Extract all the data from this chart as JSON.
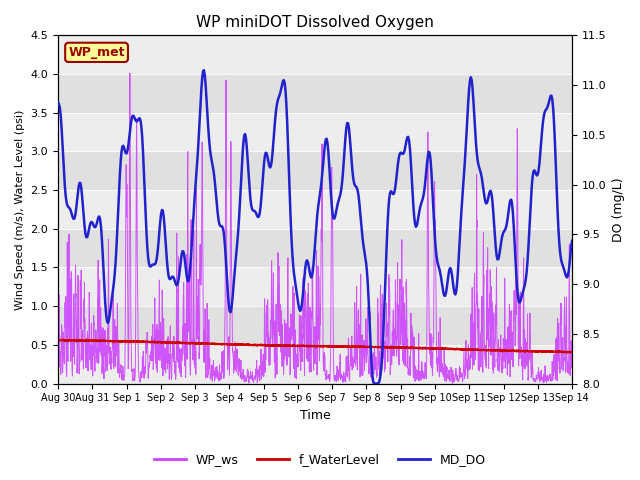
{
  "title": "WP miniDOT Dissolved Oxygen",
  "xlabel": "Time",
  "ylabel_left": "Wind Speed (m/s), Water Level (psi)",
  "ylabel_right": "DO (mg/L)",
  "ylim_left": [
    0.0,
    4.5
  ],
  "ylim_right": [
    8.0,
    11.5
  ],
  "xlim_days": [
    0,
    15
  ],
  "wp_ws_color": "#cc44ff",
  "f_wl_color": "#cc0000",
  "md_do_color": "#2222cc",
  "wp_ws_lw": 0.7,
  "f_wl_lw": 1.4,
  "md_do_lw": 1.8,
  "background_color": "#ffffff",
  "plot_bg_color": "#e0e0e0",
  "box_color": "#ffff99",
  "box_edge_color": "#990000",
  "box_text": "WP_met",
  "box_text_color": "#990000",
  "legend_labels": [
    "WP_ws",
    "f_WaterLevel",
    "MD_DO"
  ],
  "legend_colors": [
    "#cc44ff",
    "#cc0000",
    "#2222cc"
  ],
  "tick_labels": [
    "Aug 30",
    "Aug 31",
    "Sep 1",
    "Sep 2",
    "Sep 3",
    "Sep 4",
    "Sep 5",
    "Sep 6",
    "Sep 7",
    "Sep 8",
    "Sep 9",
    "Sep 10",
    "Sep 11",
    "Sep 12",
    "Sep 13",
    "Sep 14"
  ],
  "tick_positions": [
    0,
    1,
    2,
    3,
    4,
    5,
    6,
    7,
    8,
    9,
    10,
    11,
    12,
    13,
    14,
    15
  ]
}
